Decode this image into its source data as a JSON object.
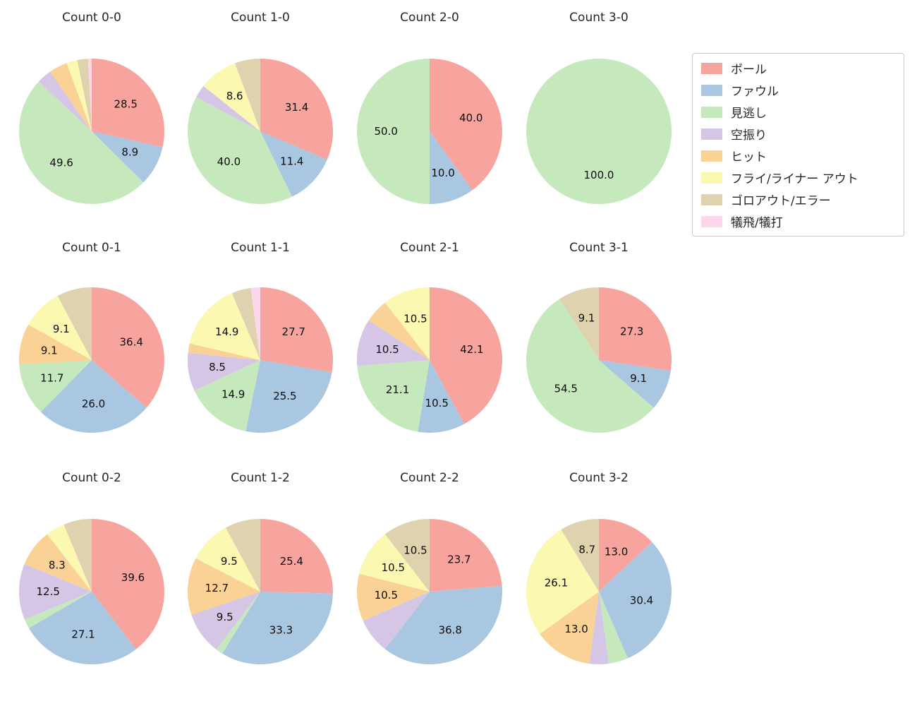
{
  "legend": {
    "items": [
      {
        "key": "ball",
        "label": "ボール",
        "color": "#f7a49e"
      },
      {
        "key": "foul",
        "label": "ファウル",
        "color": "#a9c7e1"
      },
      {
        "key": "called-strike",
        "label": "見逃し",
        "color": "#c5e8bd"
      },
      {
        "key": "swinging-strike",
        "label": "空振り",
        "color": "#d6c6e6"
      },
      {
        "key": "hit",
        "label": "ヒット",
        "color": "#fbd296"
      },
      {
        "key": "fly-liner-out",
        "label": "フライ/ライナー アウト",
        "color": "#fbf8b1"
      },
      {
        "key": "ground-out-error",
        "label": "ゴロアウト/エラー",
        "color": "#ded3ae"
      },
      {
        "key": "sac-fly-bunt",
        "label": "犠飛/犠打",
        "color": "#fcd7ec"
      }
    ]
  },
  "label_min_pct": 8.0,
  "chart_data": [
    {
      "type": "pie",
      "title": "Count 0-0",
      "categories": [
        "ボール",
        "ファウル",
        "見逃し",
        "空振り",
        "ヒット",
        "フライ/ライナー アウト",
        "ゴロアウト/エラー",
        "犠飛/犠打"
      ],
      "values": [
        28.5,
        8.9,
        49.6,
        3.3,
        4.1,
        2.4,
        2.4,
        0.8
      ]
    },
    {
      "type": "pie",
      "title": "Count 1-0",
      "categories": [
        "ボール",
        "ファウル",
        "見逃し",
        "空振り",
        "ヒット",
        "フライ/ライナー アウト",
        "ゴロアウト/エラー",
        "犠飛/犠打"
      ],
      "values": [
        31.4,
        11.4,
        40.0,
        2.9,
        0,
        8.6,
        5.7,
        0
      ]
    },
    {
      "type": "pie",
      "title": "Count 2-0",
      "categories": [
        "ボール",
        "ファウル",
        "見逃し",
        "空振り",
        "ヒット",
        "フライ/ライナー アウト",
        "ゴロアウト/エラー",
        "犠飛/犠打"
      ],
      "values": [
        40.0,
        10.0,
        50.0,
        0,
        0,
        0,
        0,
        0
      ]
    },
    {
      "type": "pie",
      "title": "Count 3-0",
      "categories": [
        "ボール",
        "ファウル",
        "見逃し",
        "空振り",
        "ヒット",
        "フライ/ライナー アウト",
        "ゴロアウト/エラー",
        "犠飛/犠打"
      ],
      "values": [
        0,
        0,
        100.0,
        0,
        0,
        0,
        0,
        0
      ]
    },
    {
      "type": "pie",
      "title": "Count 0-1",
      "categories": [
        "ボール",
        "ファウル",
        "見逃し",
        "空振り",
        "ヒット",
        "フライ/ライナー アウト",
        "ゴロアウト/エラー",
        "犠飛/犠打"
      ],
      "values": [
        36.4,
        26.0,
        11.7,
        0,
        9.1,
        9.1,
        7.8,
        0
      ]
    },
    {
      "type": "pie",
      "title": "Count 1-1",
      "categories": [
        "ボール",
        "ファウル",
        "見逃し",
        "空振り",
        "ヒット",
        "フライ/ライナー アウト",
        "ゴロアウト/エラー",
        "犠飛/犠打"
      ],
      "values": [
        27.7,
        25.5,
        14.9,
        8.5,
        2.1,
        14.9,
        4.3,
        2.1
      ]
    },
    {
      "type": "pie",
      "title": "Count 2-1",
      "categories": [
        "ボール",
        "ファウル",
        "見逃し",
        "空振り",
        "ヒット",
        "フライ/ライナー アウト",
        "ゴロアウト/エラー",
        "犠飛/犠打"
      ],
      "values": [
        42.1,
        10.5,
        21.1,
        10.5,
        5.3,
        10.5,
        0,
        0
      ]
    },
    {
      "type": "pie",
      "title": "Count 3-1",
      "categories": [
        "ボール",
        "ファウル",
        "見逃し",
        "空振り",
        "ヒット",
        "フライ/ライナー アウト",
        "ゴロアウト/エラー",
        "犠飛/犠打"
      ],
      "values": [
        27.3,
        9.1,
        54.5,
        0,
        0,
        0,
        9.1,
        0
      ]
    },
    {
      "type": "pie",
      "title": "Count 0-2",
      "categories": [
        "ボール",
        "ファウル",
        "見逃し",
        "空振り",
        "ヒット",
        "フライ/ライナー アウト",
        "ゴロアウト/エラー",
        "犠飛/犠打"
      ],
      "values": [
        39.6,
        27.1,
        2.1,
        12.5,
        8.3,
        4.2,
        6.3,
        0
      ]
    },
    {
      "type": "pie",
      "title": "Count 1-2",
      "categories": [
        "ボール",
        "ファウル",
        "見逃し",
        "空振り",
        "ヒット",
        "フライ/ライナー アウト",
        "ゴロアウト/エラー",
        "犠飛/犠打"
      ],
      "values": [
        25.4,
        33.3,
        1.6,
        9.5,
        12.7,
        9.5,
        7.9,
        0
      ]
    },
    {
      "type": "pie",
      "title": "Count 2-2",
      "categories": [
        "ボール",
        "ファウル",
        "見逃し",
        "空振り",
        "ヒット",
        "フライ/ライナー アウト",
        "ゴロアウト/エラー",
        "犠飛/犠打"
      ],
      "values": [
        23.7,
        36.8,
        0,
        7.9,
        10.5,
        10.5,
        10.5,
        0
      ]
    },
    {
      "type": "pie",
      "title": "Count 3-2",
      "categories": [
        "ボール",
        "ファウル",
        "見逃し",
        "空振り",
        "ヒット",
        "フライ/ライナー アウト",
        "ゴロアウト/エラー",
        "犠飛/犠打"
      ],
      "values": [
        13.0,
        30.4,
        4.3,
        4.3,
        13.0,
        26.1,
        8.7,
        0
      ]
    }
  ]
}
